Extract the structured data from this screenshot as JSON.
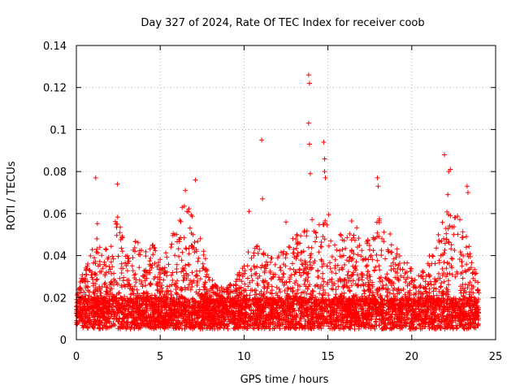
{
  "chart_data": {
    "type": "scatter",
    "title": "Day 327 of 2024, Rate Of TEC Index for receiver coob",
    "xlabel": "GPS time / hours",
    "ylabel": "ROTI / TECUs",
    "xlim": [
      0,
      25
    ],
    "ylim": [
      0,
      0.14
    ],
    "xticks": [
      0,
      5,
      10,
      15,
      20,
      25
    ],
    "yticks": [
      0,
      0.02,
      0.04,
      0.06,
      0.08,
      0.1,
      0.12,
      0.14
    ],
    "xtick_labels": [
      "0",
      "5",
      "10",
      "15",
      "20",
      "25"
    ],
    "ytick_labels": [
      "0",
      "0.02",
      "0.04",
      "0.06",
      "0.08",
      "0.1",
      "0.12",
      "0.14"
    ],
    "grid": true,
    "marker": "+",
    "color": "#ff0000",
    "series": [
      {
        "name": "ROTI coob",
        "x_range": [
          0,
          24
        ],
        "baseline_range": [
          0.005,
          0.02
        ],
        "envelope": {
          "x": [
            0,
            0.5,
            1.0,
            1.2,
            1.6,
            2.0,
            2.5,
            3.0,
            3.5,
            4.0,
            4.5,
            5.0,
            5.5,
            6.0,
            6.5,
            7.0,
            7.5,
            8.0,
            8.5,
            9.0,
            9.5,
            10.0,
            10.5,
            11.0,
            11.5,
            12.0,
            12.5,
            13.0,
            13.5,
            14.0,
            14.5,
            15.0,
            15.5,
            16.0,
            16.5,
            17.0,
            17.5,
            18.0,
            18.5,
            19.0,
            19.5,
            20.0,
            20.5,
            21.0,
            21.5,
            22.0,
            22.5,
            23.0,
            23.5,
            24.0
          ],
          "y": [
            0.022,
            0.035,
            0.045,
            0.06,
            0.04,
            0.05,
            0.065,
            0.045,
            0.05,
            0.04,
            0.05,
            0.04,
            0.045,
            0.06,
            0.065,
            0.06,
            0.045,
            0.03,
            0.025,
            0.025,
            0.03,
            0.035,
            0.05,
            0.045,
            0.04,
            0.04,
            0.045,
            0.05,
            0.05,
            0.06,
            0.055,
            0.06,
            0.055,
            0.05,
            0.06,
            0.045,
            0.05,
            0.06,
            0.055,
            0.05,
            0.04,
            0.035,
            0.03,
            0.04,
            0.05,
            0.06,
            0.065,
            0.06,
            0.045,
            0.03
          ]
        },
        "outliers": [
          {
            "x": 1.15,
            "y": 0.077
          },
          {
            "x": 2.45,
            "y": 0.074
          },
          {
            "x": 6.5,
            "y": 0.071
          },
          {
            "x": 7.1,
            "y": 0.076
          },
          {
            "x": 11.05,
            "y": 0.095
          },
          {
            "x": 11.1,
            "y": 0.067
          },
          {
            "x": 13.85,
            "y": 0.126
          },
          {
            "x": 13.9,
            "y": 0.122
          },
          {
            "x": 13.85,
            "y": 0.103
          },
          {
            "x": 13.9,
            "y": 0.093
          },
          {
            "x": 13.95,
            "y": 0.079
          },
          {
            "x": 14.75,
            "y": 0.094
          },
          {
            "x": 14.8,
            "y": 0.086
          },
          {
            "x": 14.8,
            "y": 0.08
          },
          {
            "x": 14.85,
            "y": 0.077
          },
          {
            "x": 17.95,
            "y": 0.077
          },
          {
            "x": 18.0,
            "y": 0.073
          },
          {
            "x": 21.95,
            "y": 0.088
          },
          {
            "x": 22.2,
            "y": 0.08
          },
          {
            "x": 22.3,
            "y": 0.081
          },
          {
            "x": 22.15,
            "y": 0.069
          },
          {
            "x": 23.3,
            "y": 0.073
          },
          {
            "x": 23.35,
            "y": 0.07
          },
          {
            "x": 10.3,
            "y": 0.061
          },
          {
            "x": 12.5,
            "y": 0.056
          }
        ]
      }
    ]
  }
}
